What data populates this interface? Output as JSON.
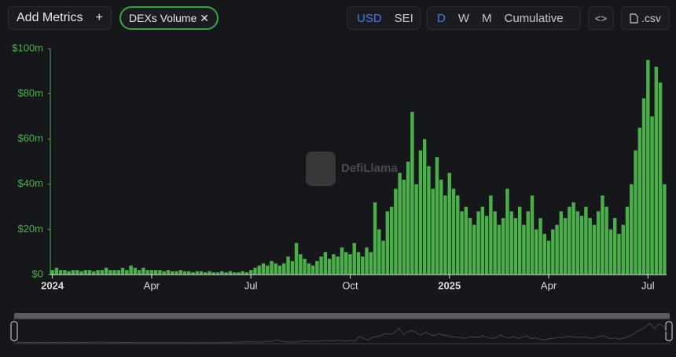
{
  "toolbar": {
    "add_metrics": "Add Metrics",
    "add_icon": "+",
    "metric": "DEXs Volume",
    "remove_icon": "✕",
    "currencies": [
      "USD",
      "SEI"
    ],
    "periods": [
      "D",
      "W",
      "M",
      "Cumulative"
    ],
    "embed": "<>",
    "csv": ".csv"
  },
  "watermark": "DefiLlama",
  "chart_data": {
    "type": "bar",
    "color": "#4cb04a",
    "categories": [
      "2024",
      null,
      null,
      null,
      null,
      null,
      null,
      null,
      null,
      null,
      null,
      null,
      null,
      null,
      null,
      null,
      null,
      null,
      null,
      null,
      null,
      null,
      null,
      null,
      "Apr",
      null,
      null,
      null,
      null,
      null,
      null,
      null,
      null,
      null,
      null,
      null,
      null,
      null,
      null,
      null,
      null,
      null,
      null,
      null,
      null,
      null,
      null,
      null,
      "Jul",
      null,
      null,
      null,
      null,
      null,
      null,
      null,
      null,
      null,
      null,
      null,
      null,
      null,
      null,
      null,
      null,
      null,
      null,
      null,
      null,
      null,
      null,
      null,
      "Oct",
      null,
      null,
      null,
      null,
      null,
      null,
      null,
      null,
      null,
      null,
      null,
      null,
      null,
      null,
      null,
      null,
      null,
      null,
      null,
      null,
      null,
      null,
      null,
      "2025",
      null,
      null,
      null,
      null,
      null,
      null,
      null,
      null,
      null,
      null,
      null,
      null,
      null,
      null,
      null,
      null,
      null,
      null,
      null,
      null,
      null,
      null,
      null,
      "Apr",
      null,
      null,
      null,
      null,
      null,
      null,
      null,
      null,
      null,
      null,
      null,
      null,
      null,
      null,
      null,
      null,
      null,
      null,
      null,
      null,
      null,
      null,
      null,
      "Jul",
      null,
      null,
      null,
      null
    ],
    "values": [
      2,
      3,
      2,
      2,
      1.5,
      2,
      2,
      1.5,
      2,
      2,
      1.5,
      2,
      2,
      3,
      2,
      2,
      2,
      3,
      2,
      4,
      3,
      2,
      3,
      2,
      2,
      2,
      2,
      1.5,
      2,
      1.5,
      1.5,
      2,
      1.5,
      1.5,
      1,
      1.5,
      1.5,
      1,
      1.5,
      1,
      1,
      1.5,
      1,
      1.5,
      1,
      1,
      1.5,
      1,
      2,
      3,
      4,
      5,
      4,
      6,
      5,
      4,
      5,
      8,
      6,
      14,
      9,
      7,
      5,
      4,
      6,
      8,
      10,
      7,
      9,
      8,
      12,
      10,
      9,
      14,
      10,
      8,
      12,
      10,
      32,
      20,
      15,
      28,
      30,
      38,
      45,
      42,
      50,
      72,
      40,
      55,
      60,
      48,
      38,
      52,
      42,
      35,
      45,
      38,
      35,
      28,
      30,
      25,
      22,
      28,
      30,
      26,
      35,
      28,
      22,
      25,
      38,
      28,
      25,
      30,
      22,
      28,
      35,
      20,
      25,
      18,
      15,
      20,
      22,
      28,
      25,
      30,
      32,
      28,
      26,
      30,
      25,
      22,
      28,
      35,
      30,
      20,
      25,
      18,
      22,
      30,
      40,
      55,
      65,
      78,
      95,
      70,
      92,
      85,
      40
    ],
    "ylim": [
      0,
      100
    ],
    "yticks": [
      {
        "value": 0,
        "label": "$0"
      },
      {
        "value": 20,
        "label": "$20m"
      },
      {
        "value": 40,
        "label": "$40m"
      },
      {
        "value": 60,
        "label": "$60m"
      },
      {
        "value": 80,
        "label": "$80m"
      },
      {
        "value": 100,
        "label": "$100m"
      }
    ],
    "grid": false
  }
}
